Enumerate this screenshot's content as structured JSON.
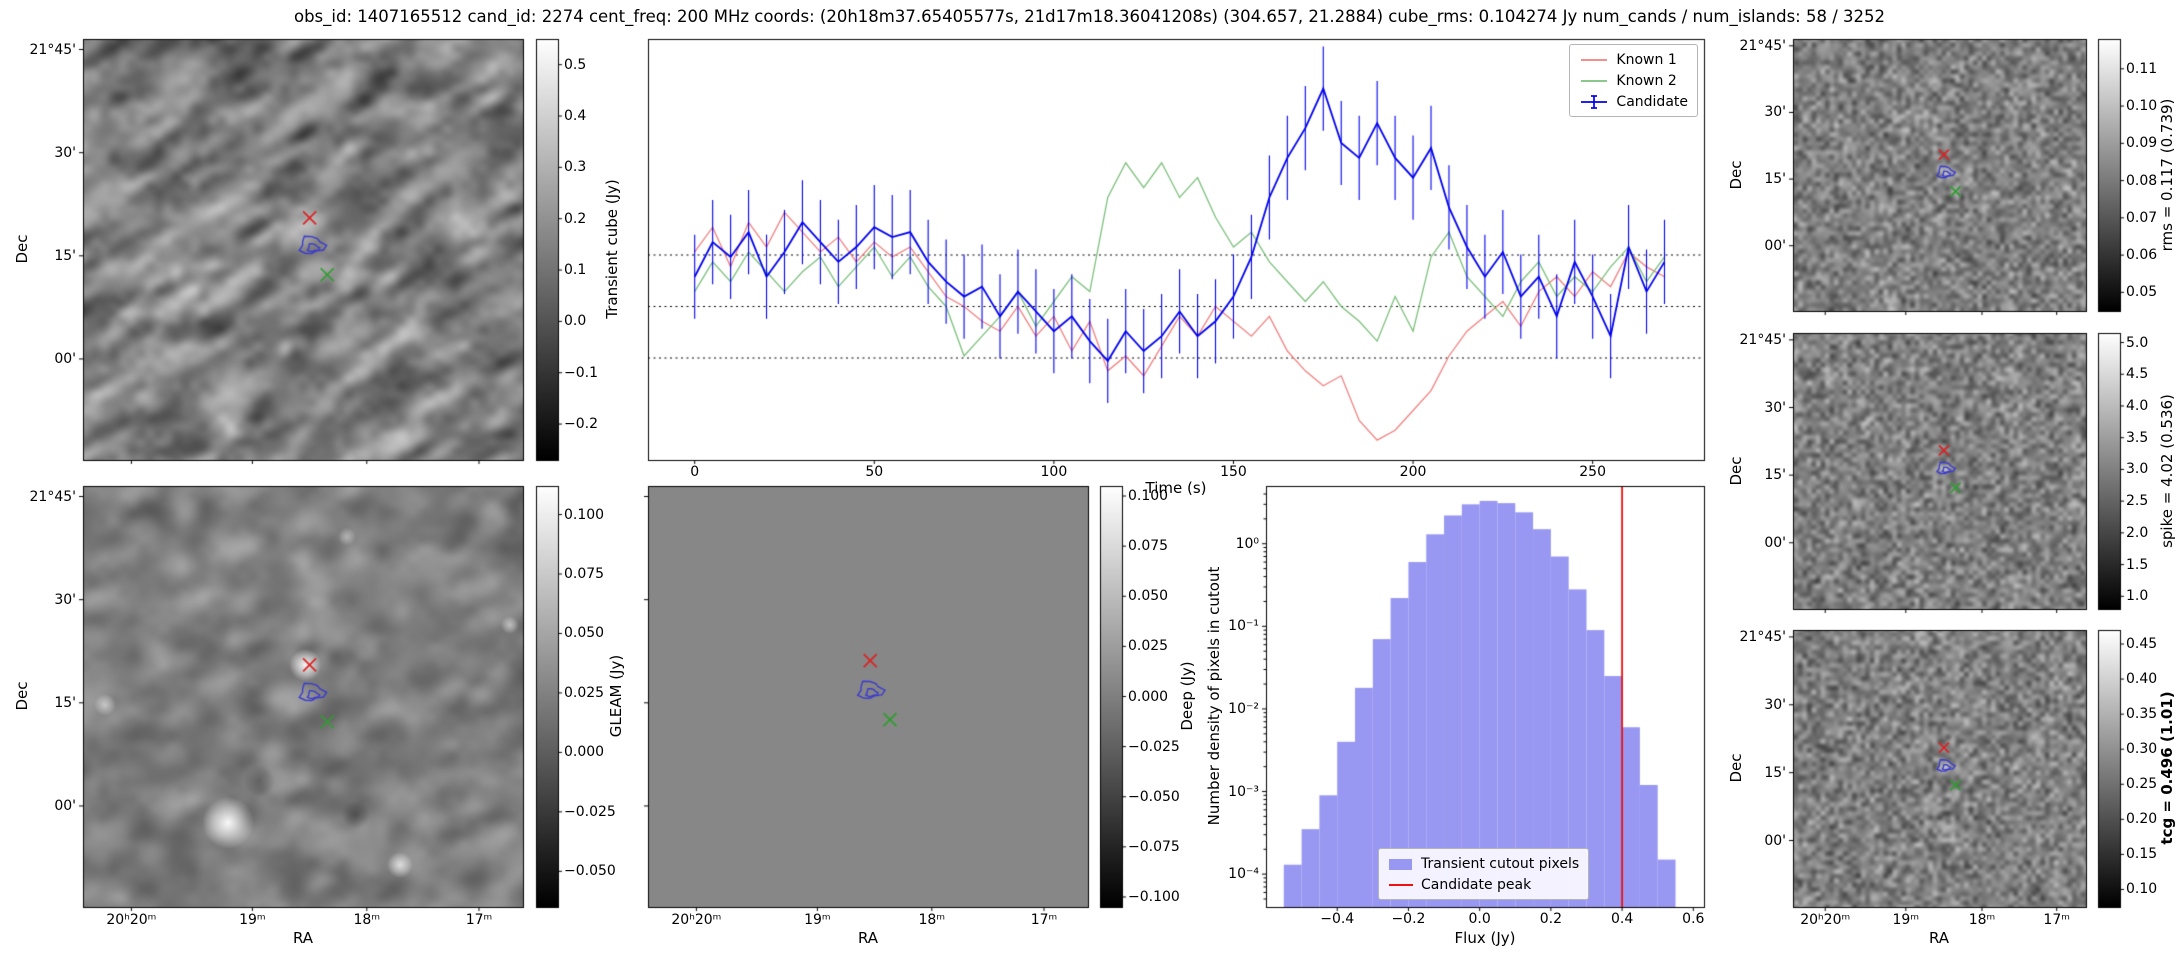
{
  "title": "obs_id: 1407165512 cand_id: 2274 cent_freq: 200 MHz coords: (20h18m37.65405577s, 21d17m18.36041208s) (304.657, 21.2884) cube_rms: 0.104274 Jy num_cands / num_islands: 58 / 3252",
  "chart_data": [
    {
      "id": "transient_cube_cutout",
      "type": "heatmap",
      "description": "Grayscale sky cutout of the transient cube around the candidate (noise image, pixel values not resolvable from screenshot)",
      "ylabel": "Dec",
      "xlabel": "",
      "y_ticks": [
        "21°45'",
        "30'",
        "15'",
        "00'"
      ],
      "x_ticks": [],
      "colorbar": {
        "label": "Transient cube (Jy)",
        "ticks": [
          "0.5",
          "0.4",
          "0.3",
          "0.2",
          "0.1",
          "0.0",
          "−0.1",
          "−0.2"
        ]
      },
      "markers": [
        {
          "shape": "x",
          "color": "#dd2222",
          "x": 0.515,
          "y": 0.425
        },
        {
          "shape": "x",
          "color": "#2f9e2f",
          "x": 0.555,
          "y": 0.56
        },
        {
          "shape": "contour",
          "color": "#3b3bcf",
          "x": 0.52,
          "y": 0.49
        }
      ]
    },
    {
      "id": "gleam_cutout",
      "type": "heatmap",
      "description": "GLEAM reference image cutout with bright background sources",
      "ylabel": "Dec",
      "xlabel": "RA",
      "y_ticks": [
        "21°45'",
        "30'",
        "15'",
        "00'"
      ],
      "x_ticks": [
        "20ʰ20ᵐ",
        "19ᵐ",
        "18ᵐ",
        "17ᵐ"
      ],
      "colorbar": {
        "label": "GLEAM (Jy)",
        "ticks": [
          "0.100",
          "0.075",
          "0.050",
          "0.025",
          "0.000",
          "−0.025",
          "−0.050"
        ]
      },
      "markers": [
        {
          "shape": "x",
          "color": "#dd2222",
          "x": 0.515,
          "y": 0.425
        },
        {
          "shape": "x",
          "color": "#2f9e2f",
          "x": 0.555,
          "y": 0.56
        },
        {
          "shape": "contour",
          "color": "#3b3bcf",
          "x": 0.52,
          "y": 0.49
        }
      ]
    },
    {
      "id": "light_curve",
      "type": "line",
      "xlabel": "Time (s)",
      "x_ticks": [
        0,
        50,
        100,
        150,
        200,
        250
      ],
      "xlim": [
        -13,
        281
      ],
      "ylim": [
        -0.31,
        0.54
      ],
      "hlines": [
        0.104,
        0.0,
        -0.104
      ],
      "x_start": 0,
      "x_step": 5,
      "legend_position": "upper right",
      "series": [
        {
          "name": "Known 1",
          "color": "#f08080",
          "values": [
            0.11,
            0.16,
            0.08,
            0.17,
            0.12,
            0.19,
            0.15,
            0.11,
            0.14,
            0.09,
            0.13,
            0.1,
            0.12,
            0.07,
            0.02,
            0.0,
            -0.03,
            -0.05,
            0.0,
            -0.06,
            -0.02,
            -0.09,
            -0.03,
            -0.13,
            -0.1,
            -0.14,
            -0.08,
            -0.02,
            -0.06,
            0.0,
            -0.03,
            -0.06,
            -0.02,
            -0.09,
            -0.13,
            -0.16,
            -0.14,
            -0.23,
            -0.27,
            -0.25,
            -0.21,
            -0.17,
            -0.1,
            -0.05,
            -0.02,
            0.01,
            -0.04,
            0.03,
            0.06,
            0.02,
            0.07,
            0.04,
            0.11,
            0.08,
            0.06
          ]
        },
        {
          "name": "Known 2",
          "color": "#7cbf7c",
          "values": [
            0.03,
            0.09,
            0.05,
            0.11,
            0.07,
            0.03,
            0.07,
            0.1,
            0.04,
            0.08,
            0.12,
            0.06,
            0.1,
            0.04,
            0.0,
            -0.1,
            -0.06,
            -0.02,
            0.03,
            -0.04,
            0.01,
            0.06,
            0.03,
            0.22,
            0.29,
            0.24,
            0.29,
            0.22,
            0.26,
            0.18,
            0.12,
            0.15,
            0.09,
            0.05,
            0.01,
            0.05,
            0.0,
            -0.03,
            -0.07,
            0.02,
            -0.05,
            0.1,
            0.15,
            0.06,
            0.02,
            -0.02,
            0.05,
            0.09,
            0.02,
            0.06,
            0.03,
            0.08,
            0.12,
            0.05,
            0.1
          ]
        },
        {
          "name": "Candidate",
          "color": "#0000ee",
          "errorbar": 0.085,
          "values": [
            0.06,
            0.13,
            0.1,
            0.15,
            0.06,
            0.11,
            0.17,
            0.13,
            0.09,
            0.12,
            0.16,
            0.14,
            0.15,
            0.09,
            0.05,
            0.02,
            0.04,
            -0.02,
            0.03,
            -0.01,
            -0.05,
            -0.02,
            -0.07,
            -0.11,
            -0.05,
            -0.09,
            -0.06,
            -0.01,
            -0.06,
            -0.03,
            0.02,
            0.1,
            0.22,
            0.3,
            0.36,
            0.44,
            0.33,
            0.3,
            0.37,
            0.3,
            0.26,
            0.32,
            0.2,
            0.12,
            0.06,
            0.11,
            0.02,
            0.06,
            -0.02,
            0.09,
            0.02,
            -0.06,
            0.12,
            0.03,
            0.09
          ]
        }
      ]
    },
    {
      "id": "deep_cutout",
      "type": "heatmap",
      "description": "Deep image cutout (uniform gray, all pixels ≈ 0 Jy)",
      "uniform_value": 0.0,
      "ylabel": "",
      "xlabel": "RA",
      "y_ticks": [],
      "x_ticks": [
        "20ʰ20ᵐ",
        "19ᵐ",
        "18ᵐ",
        "17ᵐ"
      ],
      "colorbar": {
        "label": "Deep (Jy)",
        "ticks": [
          "0.100",
          "0.075",
          "0.050",
          "0.025",
          "0.000",
          "−0.025",
          "−0.050",
          "−0.075",
          "−0.100"
        ]
      },
      "markers": [
        {
          "shape": "x",
          "color": "#dd2222",
          "x": 0.505,
          "y": 0.415
        },
        {
          "shape": "x",
          "color": "#2f9e2f",
          "x": 0.55,
          "y": 0.555
        },
        {
          "shape": "contour",
          "color": "#3b3bcf",
          "x": 0.505,
          "y": 0.485
        }
      ]
    },
    {
      "id": "flux_histogram",
      "type": "bar",
      "xlabel": "Flux (Jy)",
      "ylabel": "Number density of pixels in cutout",
      "x_ticks": [
        "−0.4",
        "−0.2",
        "0.0",
        "0.2",
        "0.4",
        "0.6"
      ],
      "y_ticks": [
        "10⁰",
        "10⁻¹",
        "10⁻²",
        "10⁻³",
        "10⁻⁴"
      ],
      "xlim": [
        -0.6,
        0.63
      ],
      "ylim_log": [
        4e-05,
        5
      ],
      "bin_start": -0.55,
      "bin_width": 0.05,
      "densities": [
        0.00013,
        0.00035,
        0.0009,
        0.004,
        0.018,
        0.07,
        0.22,
        0.6,
        1.3,
        2.2,
        3.0,
        3.3,
        3.1,
        2.4,
        1.5,
        0.7,
        0.28,
        0.09,
        0.025,
        0.006,
        0.0012,
        0.00015
      ],
      "bar_color": "#9897f2",
      "vline": {
        "x": 0.4,
        "color": "#ee1111"
      },
      "legend": [
        {
          "label": "Transient cutout pixels",
          "color": "#9897f2"
        },
        {
          "label": "Candidate peak",
          "color": "#ee1111"
        }
      ]
    },
    {
      "id": "rms_map",
      "type": "heatmap",
      "description": "Local rms noise map cutout",
      "ylabel": "Dec",
      "xlabel": "",
      "y_ticks": [
        "21°45'",
        "30'",
        "15'",
        "00'"
      ],
      "x_ticks": [],
      "colorbar": {
        "label": "rms = 0.117 (0.739)",
        "ticks": [
          "0.11",
          "0.10",
          "0.09",
          "0.08",
          "0.07",
          "0.06",
          "0.05"
        ]
      },
      "markers": [
        {
          "shape": "x",
          "color": "#dd2222",
          "x": 0.515,
          "y": 0.425
        },
        {
          "shape": "x",
          "color": "#2f9e2f",
          "x": 0.555,
          "y": 0.56
        },
        {
          "shape": "contour",
          "color": "#3b3bcf",
          "x": 0.52,
          "y": 0.49
        }
      ]
    },
    {
      "id": "spike_map",
      "type": "heatmap",
      "description": "Spike statistic map cutout",
      "ylabel": "Dec",
      "xlabel": "",
      "y_ticks": [
        "21°45'",
        "30'",
        "15'",
        "00'"
      ],
      "x_ticks": [],
      "colorbar": {
        "label": "spike = 4.02 (0.536)",
        "ticks": [
          "5.0",
          "4.5",
          "4.0",
          "3.5",
          "3.0",
          "2.5",
          "2.0",
          "1.5",
          "1.0"
        ]
      },
      "markers": [
        {
          "shape": "x",
          "color": "#dd2222",
          "x": 0.515,
          "y": 0.425
        },
        {
          "shape": "x",
          "color": "#2f9e2f",
          "x": 0.555,
          "y": 0.56
        },
        {
          "shape": "contour",
          "color": "#3b3bcf",
          "x": 0.52,
          "y": 0.49
        }
      ]
    },
    {
      "id": "tcg_map",
      "type": "heatmap",
      "description": "tcg statistic map cutout",
      "ylabel": "Dec",
      "xlabel": "RA",
      "y_ticks": [
        "21°45'",
        "30'",
        "15'",
        "00'"
      ],
      "x_ticks": [
        "20ʰ20ᵐ",
        "19ᵐ",
        "18ᵐ",
        "17ᵐ"
      ],
      "colorbar": {
        "label": "tcg = 0.496 (1.01)",
        "bold": true,
        "ticks": [
          "0.45",
          "0.40",
          "0.35",
          "0.30",
          "0.25",
          "0.20",
          "0.15",
          "0.10"
        ]
      },
      "markers": [
        {
          "shape": "x",
          "color": "#dd2222",
          "x": 0.515,
          "y": 0.425
        },
        {
          "shape": "x",
          "color": "#2f9e2f",
          "x": 0.555,
          "y": 0.56
        },
        {
          "shape": "contour",
          "color": "#3b3bcf",
          "x": 0.52,
          "y": 0.49
        }
      ]
    }
  ]
}
